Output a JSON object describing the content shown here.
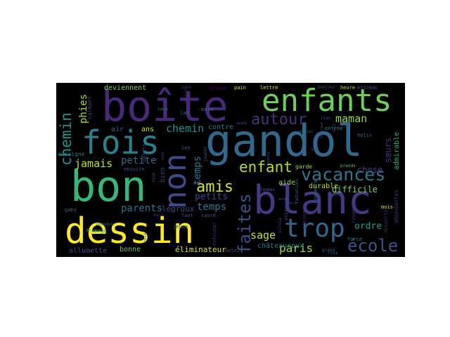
{
  "words": [
    {
      "text": "dessin",
      "color": "#fde725"
    },
    {
      "text": "bon",
      "color": "#35b779"
    },
    {
      "text": "gandol",
      "color": "#31688e"
    },
    {
      "text": "blanc",
      "color": "#443983"
    },
    {
      "text": "boîte",
      "color": "#482878"
    },
    {
      "text": "enfants",
      "color": "#6ece58"
    },
    {
      "text": "fois",
      "color": "#26828e"
    },
    {
      "text": "non",
      "color": "#3e4a89"
    },
    {
      "text": "trop",
      "color": "#31688e"
    },
    {
      "text": "vacances",
      "color": "#2a788e"
    },
    {
      "text": "école",
      "color": "#3b528b"
    },
    {
      "text": "autour",
      "color": "#46327e"
    },
    {
      "text": "enfant",
      "color": "#b5de2b"
    },
    {
      "text": "amis",
      "color": "#d8e219"
    },
    {
      "text": "faites",
      "color": "#3b528b"
    },
    {
      "text": "chemin",
      "color": "#21918c"
    },
    {
      "text": "jamais",
      "color": "#c2df23"
    },
    {
      "text": "maman",
      "color": "#9fda3a"
    },
    {
      "text": "paris",
      "color": "#a2da37"
    },
    {
      "text": "ordre",
      "color": "#1f9e89"
    },
    {
      "text": "sage",
      "color": "#c8e020"
    },
    {
      "text": "phies",
      "color": "#b5de2b"
    },
    {
      "text": "petits",
      "color": "#3e4a89"
    },
    {
      "text": "temps",
      "color": "#2a788e"
    },
    {
      "text": "parents",
      "color": "#2c728e"
    },
    {
      "text": "petite",
      "color": "#31688e"
    },
    {
      "text": "legroux",
      "color": "#3e4a89"
    },
    {
      "text": "sœurs",
      "color": "#46337f"
    },
    {
      "text": "chose",
      "color": "#414487"
    },
    {
      "text": "difficile",
      "color": "#7ad151"
    },
    {
      "text": "durable",
      "color": "#b8de29"
    },
    {
      "text": "éliminateur",
      "color": "#d5e21a"
    },
    {
      "text": "bonne",
      "color": "#5ec962"
    },
    {
      "text": "allumette",
      "color": "#3b528b"
    },
    {
      "text": "deviennent",
      "color": "#7fd34e"
    },
    {
      "text": "châteauroux",
      "color": "#2a788e"
    },
    {
      "text": "abondantes",
      "color": "#472c7a"
    },
    {
      "text": "bleu",
      "color": "#3e4a89"
    },
    {
      "text": "ennui",
      "color": "#3b528b"
    },
    {
      "text": "admirable",
      "color": "#2db27d"
    },
    {
      "text": "air",
      "color": "#31688e"
    },
    {
      "text": "ans",
      "color": "#d2e21b"
    },
    {
      "text": "contre",
      "color": "#2a788e"
    },
    {
      "text": "aide",
      "color": "#8fd744"
    },
    {
      "text": "calmant",
      "color": "#443983"
    },
    {
      "text": "enseigne",
      "color": "#2c728e"
    },
    {
      "text": "ensuite",
      "color": "#3b528b"
    },
    {
      "text": "bien",
      "color": "#433d84"
    },
    {
      "text": "fromage",
      "color": "#35b779"
    },
    {
      "text": "gaby",
      "color": "#31688e"
    },
    {
      "text": "desserts",
      "color": "#472d7b"
    },
    {
      "text": "mois",
      "color": "#e5e419"
    },
    {
      "text": "garde",
      "color": "#9dd93b"
    },
    {
      "text": "lab",
      "color": "#31688e"
    },
    {
      "text": "main",
      "color": "#2a788e"
    },
    {
      "text": "année",
      "color": "#440154"
    },
    {
      "text": "pain",
      "color": "#d8e219"
    },
    {
      "text": "lettre",
      "color": "#fde725"
    },
    {
      "text": "heure",
      "color": "#bddf26"
    },
    {
      "text": "estomac",
      "color": "#3b528b"
    },
    {
      "text": "force",
      "color": "#2a788e"
    },
    {
      "text": "entrée",
      "color": "#26828e"
    },
    {
      "text": "hélin",
      "color": "#31688e"
    },
    {
      "text": "sel",
      "color": "#414487"
    },
    {
      "text": "patron",
      "color": "#472c7a"
    },
    {
      "text": "notez",
      "color": "#414487"
    },
    {
      "text": "jeune",
      "color": "#2c728e"
    },
    {
      "text": "faut",
      "color": "#3e4a89"
    },
    {
      "text": "let",
      "color": "#31688e"
    },
    {
      "text": "voie",
      "color": "#3e4a89"
    },
    {
      "text": "marc",
      "color": "#46327e"
    },
    {
      "text": "sauré",
      "color": "#3b528b"
    },
    {
      "text": "femmes",
      "color": "#3b528b"
    },
    {
      "text": "joueurs",
      "color": "#2a788e"
    },
    {
      "text": "occasion",
      "color": "#3e4a89"
    },
    {
      "text": "radiations",
      "color": "#33638d"
    },
    {
      "text": "silvia",
      "color": "#3e4a89"
    },
    {
      "text": "prends",
      "color": "#5ec962"
    },
    {
      "text": "grand",
      "color": "#33638d"
    },
    {
      "text": "rouge",
      "color": "#46327e"
    },
    {
      "text": "rosa",
      "color": "#3b528b"
    },
    {
      "text": "objets",
      "color": "#3e4a89"
    },
    {
      "text": "pourr",
      "color": "#3b528b"
    },
    {
      "text": "jeuner",
      "color": "#3b528b"
    },
    {
      "text": "exécuter",
      "color": "#46327e"
    },
    {
      "text": "voix",
      "color": "#31688e"
    },
    {
      "text": "bonjour",
      "color": "#3b528b"
    },
    {
      "text": "sans",
      "color": "#46327e"
    },
    {
      "text": "voisin",
      "color": "#46327e"
    },
    {
      "text": "rien",
      "color": "#3e4a89"
    },
    {
      "text": "doubles",
      "color": "#31688e"
    },
    {
      "text": "remarqué",
      "color": "#3e4a89"
    },
    {
      "text": "table",
      "color": "#2c728e"
    },
    {
      "text": "tête",
      "color": "#3e4a89"
    },
    {
      "text": "sauf",
      "color": "#3e4a89"
    },
    {
      "text": "appris",
      "color": "#3e4a89"
    },
    {
      "text": "vendyfare",
      "color": "#2c728e"
    },
    {
      "text": "quand",
      "color": "#3e4a89"
    },
    {
      "text": "aussi",
      "color": "#3e4a89"
    },
    {
      "text": "dire",
      "color": "#3e4a89"
    }
  ]
}
